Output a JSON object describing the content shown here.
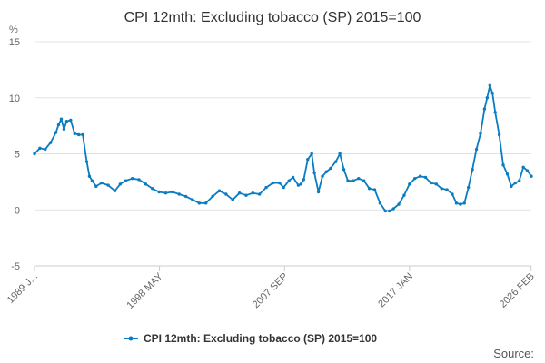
{
  "chart_data": {
    "type": "line",
    "title": "CPI 12mth: Excluding tobacco (SP) 2015=100",
    "ylabel": "%",
    "ylim": [
      -5,
      15
    ],
    "yticks": [
      -5,
      0,
      5,
      10,
      15
    ],
    "ytick_labels": [
      "-5",
      "0",
      "5",
      "10",
      "15"
    ],
    "xlim": [
      1989.0,
      2026.1
    ],
    "xticks": [
      {
        "value": 1989.0,
        "label": "1989 J..."
      },
      {
        "value": 1998.33,
        "label": "1998 MAY"
      },
      {
        "value": 2007.67,
        "label": "2007 SEP"
      },
      {
        "value": 2017.0,
        "label": "2017 JAN"
      },
      {
        "value": 2026.08,
        "label": "2026 FEB"
      }
    ],
    "grid": "horizontal",
    "legend": "bottom",
    "source_label": "Source:",
    "series": [
      {
        "name": "CPI 12mth: Excluding tobacco (SP) 2015=100",
        "color": "#0a7cc1",
        "x": [
          1989.0,
          1989.4,
          1989.8,
          1990.2,
          1990.6,
          1990.8,
          1991.0,
          1991.2,
          1991.4,
          1991.7,
          1992.0,
          1992.3,
          1992.6,
          1992.9,
          1993.1,
          1993.3,
          1993.6,
          1994.0,
          1994.5,
          1995.0,
          1995.4,
          1995.8,
          1996.3,
          1996.8,
          1997.3,
          1997.8,
          1998.3,
          1998.8,
          1999.3,
          1999.8,
          2000.3,
          2000.8,
          2001.3,
          2001.8,
          2002.3,
          2002.8,
          2003.3,
          2003.8,
          2004.3,
          2004.8,
          2005.3,
          2005.8,
          2006.3,
          2006.8,
          2007.3,
          2007.6,
          2008.0,
          2008.3,
          2008.7,
          2008.9,
          2009.1,
          2009.4,
          2009.7,
          2009.9,
          2010.2,
          2010.5,
          2010.8,
          2011.1,
          2011.5,
          2011.8,
          2012.1,
          2012.4,
          2012.8,
          2013.2,
          2013.6,
          2014.0,
          2014.4,
          2014.8,
          2015.2,
          2015.5,
          2015.8,
          2016.2,
          2016.6,
          2017.0,
          2017.4,
          2017.8,
          2018.2,
          2018.6,
          2019.0,
          2019.4,
          2019.8,
          2020.2,
          2020.5,
          2020.8,
          2021.1,
          2021.4,
          2021.7,
          2022.0,
          2022.3,
          2022.6,
          2022.8,
          2023.0,
          2023.2,
          2023.4,
          2023.7,
          2024.0,
          2024.3,
          2024.6,
          2024.9,
          2025.2,
          2025.5,
          2025.8,
          2026.1
        ],
        "values": [
          5.0,
          5.5,
          5.4,
          6.0,
          6.9,
          7.6,
          8.1,
          7.2,
          7.9,
          8.0,
          6.8,
          6.7,
          6.7,
          4.3,
          3.0,
          2.6,
          2.1,
          2.4,
          2.2,
          1.7,
          2.3,
          2.6,
          2.8,
          2.7,
          2.3,
          1.9,
          1.6,
          1.5,
          1.6,
          1.4,
          1.2,
          0.9,
          0.6,
          0.6,
          1.2,
          1.7,
          1.4,
          0.9,
          1.5,
          1.3,
          1.5,
          1.4,
          2.0,
          2.4,
          2.4,
          2.0,
          2.6,
          2.9,
          2.2,
          2.3,
          2.7,
          4.5,
          5.0,
          3.3,
          1.6,
          3.0,
          3.4,
          3.7,
          4.3,
          5.0,
          3.6,
          2.6,
          2.6,
          2.8,
          2.6,
          1.9,
          1.8,
          0.6,
          -0.1,
          -0.1,
          0.1,
          0.5,
          1.3,
          2.3,
          2.8,
          3.0,
          2.9,
          2.4,
          2.3,
          1.9,
          1.8,
          1.4,
          0.6,
          0.5,
          0.6,
          2.0,
          3.6,
          5.4,
          6.8,
          9.0,
          10.0,
          11.1,
          10.4,
          8.7,
          6.7,
          4.0,
          3.2,
          2.1,
          2.4,
          2.6,
          3.8,
          3.5,
          3.0
        ]
      }
    ]
  }
}
